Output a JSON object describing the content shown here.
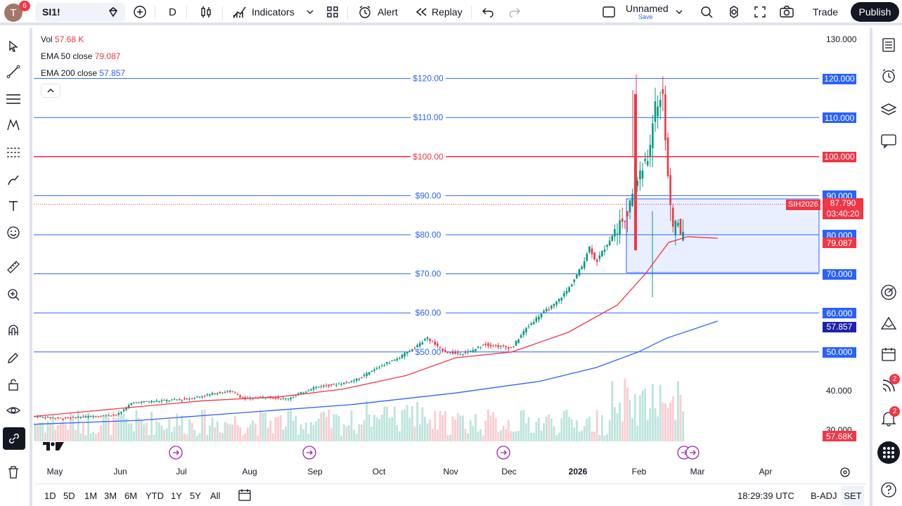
{
  "header": {
    "avatar_letter": "T",
    "avatar_badge": "6",
    "symbol": "SI1!",
    "interval": "D",
    "indicators_label": "Indicators",
    "alert_label": "Alert",
    "replay_label": "Replay",
    "layout_name": "Unnamed",
    "layout_save": "Save",
    "trade_label": "Trade",
    "publish_label": "Publish"
  },
  "legend": {
    "vol_label": "Vol",
    "vol_value": "57.68 K",
    "ema50_label": "EMA 50 close",
    "ema50_value": "79.087",
    "ema200_label": "EMA 200 close",
    "ema200_value": "57.857"
  },
  "price_axis": {
    "ticks": [
      "130.000",
      "40.000",
      "30.000"
    ],
    "boxed": [
      {
        "text": "120.000",
        "color": "#2962ff"
      },
      {
        "text": "110.000",
        "color": "#2962ff"
      },
      {
        "text": "100.000",
        "color": "#f23645"
      },
      {
        "text": "90.000",
        "color": "#2962ff"
      },
      {
        "text": "80.000",
        "color": "#2962ff"
      },
      {
        "text": "70.000",
        "color": "#2962ff"
      },
      {
        "text": "60.000",
        "color": "#2962ff"
      },
      {
        "text": "50.000",
        "color": "#2962ff"
      }
    ],
    "current_price": "87.790",
    "countdown": "03:40:20",
    "symbol_tag": "SIH2026",
    "ema50_tag": "79.087",
    "ema200_tag": "57.857",
    "vol_tag": "57.68K"
  },
  "hlines": [
    {
      "label": "$120.00",
      "price": 120,
      "color": "#2962ff"
    },
    {
      "label": "$110.00",
      "price": 110,
      "color": "#2962ff"
    },
    {
      "label": "$100.00",
      "price": 100,
      "color": "#f23645"
    },
    {
      "label": "$90.00",
      "price": 90,
      "color": "#2962ff"
    },
    {
      "label": "$80.00",
      "price": 80,
      "color": "#2962ff"
    },
    {
      "label": "$70.00",
      "price": 70,
      "color": "#2962ff"
    },
    {
      "label": "$60.00",
      "price": 60,
      "color": "#2962ff"
    },
    {
      "label": "$50.00",
      "price": 50,
      "color": "#2962ff"
    }
  ],
  "time_axis": [
    "May",
    "Jun",
    "Jul",
    "Aug",
    "Sep",
    "Oct",
    "Nov",
    "Dec",
    "2026",
    "Feb",
    "Mar",
    "Apr"
  ],
  "bottom": {
    "ranges": [
      "1D",
      "5D",
      "1M",
      "3M",
      "6M",
      "YTD",
      "1Y",
      "5Y",
      "All"
    ],
    "clock": "18:29:39 UTC",
    "badj": "B-ADJ",
    "set": "SET"
  },
  "right_badges": {
    "ideas": "2",
    "alerts": "2"
  },
  "chart_data": {
    "type": "line",
    "title": "SI1!",
    "series": [
      {
        "name": "EMA 50 close",
        "color": "#f23645",
        "points": [
          [
            0,
            33.5
          ],
          [
            120,
            35.5
          ],
          [
            240,
            37.5
          ],
          [
            350,
            38.5
          ],
          [
            440,
            40.5
          ],
          [
            530,
            44
          ],
          [
            600,
            48.5
          ],
          [
            680,
            50
          ],
          [
            760,
            55
          ],
          [
            830,
            62
          ],
          [
            870,
            70
          ],
          [
            903,
            78
          ],
          [
            930,
            79.5
          ],
          [
            973,
            79.1
          ]
        ]
      },
      {
        "name": "EMA 200 close",
        "color": "#2962ff",
        "points": [
          [
            0,
            31.5
          ],
          [
            150,
            32.5
          ],
          [
            300,
            34.5
          ],
          [
            450,
            36.5
          ],
          [
            600,
            39.5
          ],
          [
            720,
            42.5
          ],
          [
            800,
            46
          ],
          [
            860,
            50
          ],
          [
            900,
            53.5
          ],
          [
            973,
            57.9
          ]
        ]
      }
    ],
    "close_path": [
      [
        0,
        33.5
      ],
      [
        40,
        33
      ],
      [
        80,
        33.5
      ],
      [
        120,
        34
      ],
      [
        140,
        37
      ],
      [
        180,
        37.5
      ],
      [
        220,
        38
      ],
      [
        260,
        39.5
      ],
      [
        280,
        40
      ],
      [
        300,
        38
      ],
      [
        330,
        38.5
      ],
      [
        360,
        38
      ],
      [
        400,
        41
      ],
      [
        440,
        42
      ],
      [
        460,
        43
      ],
      [
        500,
        47
      ],
      [
        520,
        48.5
      ],
      [
        540,
        51
      ],
      [
        560,
        53.5
      ],
      [
        580,
        50.5
      ],
      [
        600,
        49.5
      ],
      [
        620,
        50
      ],
      [
        640,
        52
      ],
      [
        660,
        51.5
      ],
      [
        680,
        51
      ],
      [
        700,
        56
      ],
      [
        720,
        59.5
      ],
      [
        740,
        62
      ],
      [
        760,
        66
      ],
      [
        780,
        72
      ],
      [
        790,
        77
      ],
      [
        800,
        73
      ],
      [
        820,
        79
      ],
      [
        835,
        83
      ],
      [
        850,
        88
      ],
      [
        860,
        95
      ],
      [
        875,
        100
      ],
      [
        880,
        110
      ],
      [
        890,
        115
      ],
      [
        895,
        116
      ],
      [
        902,
        95
      ],
      [
        908,
        80
      ],
      [
        915,
        85
      ],
      [
        922,
        78
      ],
      [
        928,
        88
      ],
      [
        935,
        82
      ],
      [
        942,
        77
      ],
      [
        950,
        74
      ],
      [
        958,
        78
      ],
      [
        965,
        84
      ],
      [
        972,
        87.8
      ]
    ],
    "ylim": [
      27,
      132
    ],
    "current_price": 87.79
  }
}
